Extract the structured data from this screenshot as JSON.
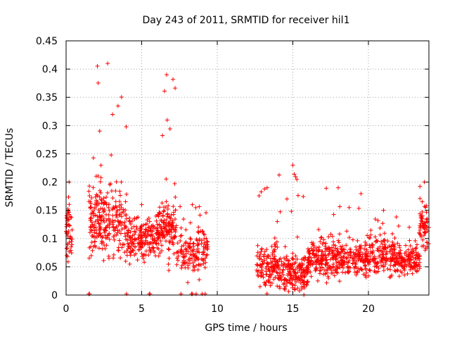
{
  "chart_data": {
    "type": "scatter",
    "title": "Day 243 of 2011, SRMTID for receiver hil1",
    "xlabel": "GPS time / hours",
    "ylabel": "SRMTID / TECUs",
    "xlim": [
      0,
      24
    ],
    "ylim": [
      0,
      0.45
    ],
    "x_ticks": [
      0,
      5,
      10,
      15,
      20
    ],
    "x_tick_labels": [
      "0",
      "5",
      "10",
      "15",
      "20"
    ],
    "y_ticks": [
      0,
      0.05,
      0.1,
      0.15,
      0.2,
      0.25,
      0.3,
      0.35,
      0.4,
      0.45
    ],
    "y_tick_labels": [
      "0",
      "0.05",
      "0.1",
      "0.15",
      "0.2",
      "0.25",
      "0.3",
      "0.35",
      "0.4",
      "0.45"
    ],
    "grid": true,
    "marker": "+",
    "color": "#ff0000",
    "series": [
      {
        "name": "SRMTID",
        "segments": [
          {
            "x_start": 0.0,
            "x_end": 0.4,
            "baseline": 0.11,
            "spread": 0.05,
            "peak": 0.2,
            "count": 45
          },
          {
            "x_start": 1.5,
            "x_end": 4.0,
            "baseline": 0.13,
            "spread": 0.06,
            "peak": 0.41,
            "count": 260
          },
          {
            "x_start": 4.0,
            "x_end": 6.0,
            "baseline": 0.1,
            "spread": 0.035,
            "peak": 0.16,
            "count": 170
          },
          {
            "x_start": 6.0,
            "x_end": 7.3,
            "baseline": 0.12,
            "spread": 0.05,
            "peak": 0.39,
            "count": 150
          },
          {
            "x_start": 7.3,
            "x_end": 9.4,
            "baseline": 0.08,
            "spread": 0.04,
            "peak": 0.16,
            "count": 150
          },
          {
            "x_start": 12.6,
            "x_end": 14.0,
            "baseline": 0.05,
            "spread": 0.04,
            "peak": 0.19,
            "count": 130
          },
          {
            "x_start": 14.0,
            "x_end": 16.0,
            "baseline": 0.04,
            "spread": 0.03,
            "peak": 0.23,
            "count": 190
          },
          {
            "x_start": 16.0,
            "x_end": 20.0,
            "baseline": 0.065,
            "spread": 0.035,
            "peak": 0.19,
            "count": 360
          },
          {
            "x_start": 20.0,
            "x_end": 22.0,
            "baseline": 0.07,
            "spread": 0.035,
            "peak": 0.15,
            "count": 170
          },
          {
            "x_start": 22.0,
            "x_end": 23.4,
            "baseline": 0.06,
            "spread": 0.025,
            "peak": 0.12,
            "count": 120
          },
          {
            "x_start": 23.4,
            "x_end": 24.0,
            "baseline": 0.12,
            "spread": 0.04,
            "peak": 0.2,
            "count": 60
          }
        ],
        "zero_points_x": [
          1.5,
          1.55,
          4.0,
          5.5,
          5.55,
          7.6,
          8.3,
          8.35,
          8.6,
          9.0,
          9.2
        ]
      }
    ]
  }
}
